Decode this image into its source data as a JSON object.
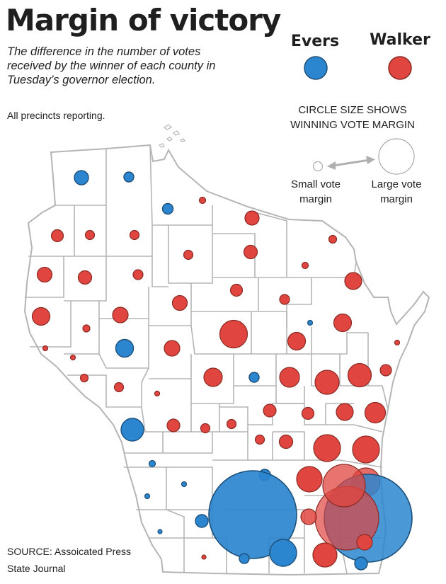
{
  "title": "Margin of victory",
  "subtitle": "The difference in the number of votes received by the winner of each county in Tuesday’s governor election.",
  "status": "All precincts reporting.",
  "legend": {
    "candidates": [
      {
        "name": "Evers",
        "color": "#2b86cf"
      },
      {
        "name": "Walker",
        "color": "#e0453f"
      }
    ],
    "size_heading_line1": "CIRCLE SIZE SHOWS",
    "size_heading_line2": "WINNING VOTE MARGIN",
    "small_line1": "Small vote",
    "small_line2": "margin",
    "large_line1": "Large vote",
    "large_line2": "margin"
  },
  "colors": {
    "evers": "#2b86cf",
    "walker": "#e0453f",
    "evers_stroke": "#1c4f7a",
    "walker_stroke": "#8a2a24",
    "county_border": "#b5b5b5"
  },
  "source_line1": "SOURCE: Assoicated Press",
  "source_line2": "State Journal"
}
